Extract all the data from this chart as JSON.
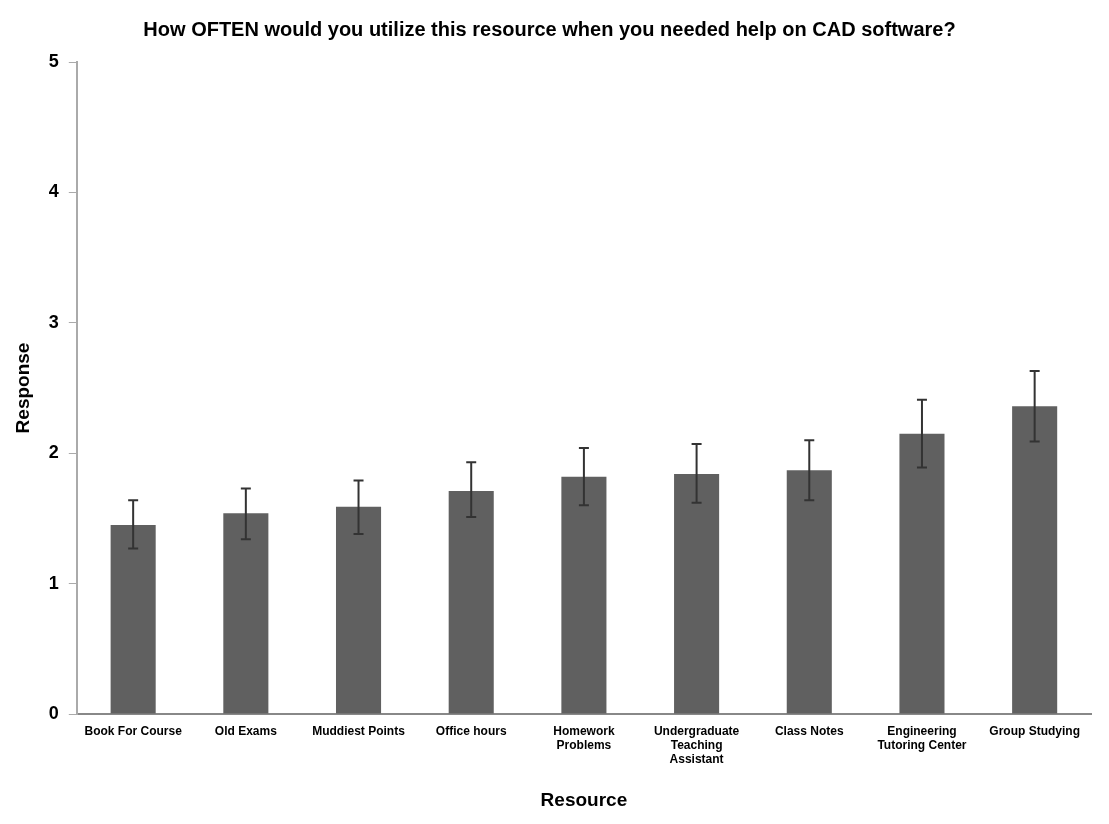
{
  "chart_data": {
    "type": "bar",
    "title": "How OFTEN would you utilize this resource when you needed help on CAD software?",
    "xlabel": "Resource",
    "ylabel": "Response",
    "categories": [
      "Book For Course",
      "Old Exams",
      "Muddiest Points",
      "Office hours",
      "Homework Problems",
      "Undergraduate Teaching Assistant",
      "Class Notes",
      "Engineering Tutoring Center",
      "Group Studying"
    ],
    "values": [
      1.45,
      1.54,
      1.59,
      1.71,
      1.82,
      1.84,
      1.87,
      2.15,
      2.36
    ],
    "errors": [
      [
        1.27,
        1.64
      ],
      [
        1.34,
        1.73
      ],
      [
        1.38,
        1.79
      ],
      [
        1.51,
        1.93
      ],
      [
        1.6,
        2.04
      ],
      [
        1.62,
        2.07
      ],
      [
        1.64,
        2.1
      ],
      [
        1.89,
        2.41
      ],
      [
        2.09,
        2.63
      ]
    ],
    "color": "#606060",
    "ylim": [
      0,
      5
    ],
    "yticks": [
      0,
      1,
      2,
      3,
      4,
      5
    ],
    "grid": false,
    "legend": false
  }
}
